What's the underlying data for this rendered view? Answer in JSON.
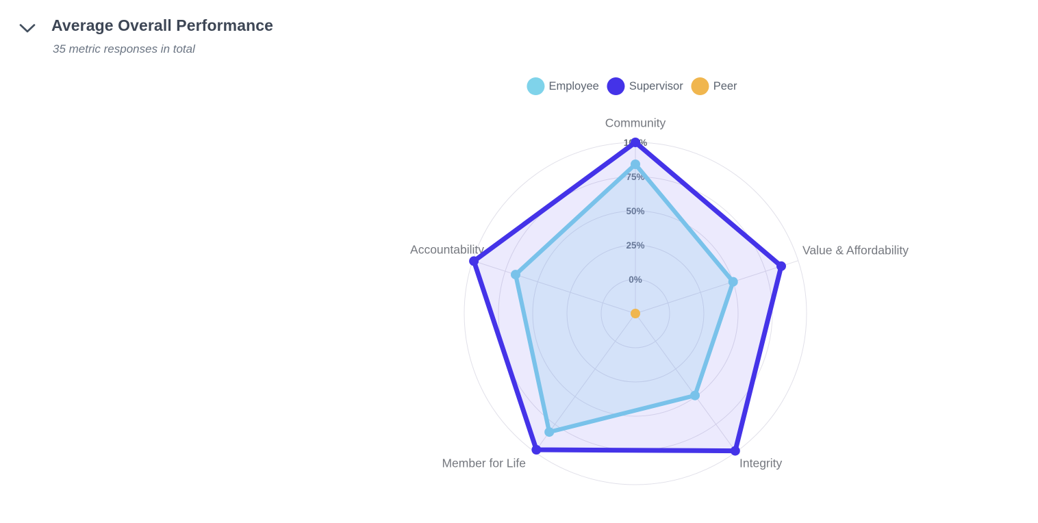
{
  "header": {
    "title": "Average Overall Performance",
    "subtitle": "35 metric responses in total"
  },
  "legend": [
    {
      "label": "Employee",
      "color": "#7FD3EA"
    },
    {
      "label": "Supervisor",
      "color": "#4433E8"
    },
    {
      "label": "Peer",
      "color": "#F0B64E"
    }
  ],
  "chart_data": {
    "type": "radar",
    "title": "Average Overall Performance",
    "indicators": [
      "Community",
      "Value & Affordability",
      "Integrity",
      "Member for Life",
      "Accountability"
    ],
    "ring_labels": [
      "0%",
      "25%",
      "50%",
      "75%",
      "100%"
    ],
    "axis_min": 0,
    "axis_max": 100,
    "grid_shape": "circle",
    "legend_position": "top-center",
    "series": [
      {
        "name": "Employee",
        "color": "#7FD3EA",
        "fill_opacity": 0.2,
        "line_width": 6.2,
        "values": [
          84,
          50,
          49,
          82,
          67
        ]
      },
      {
        "name": "Supervisor",
        "color": "#4433E8",
        "fill_opacity": 0.1,
        "line_width": 7.0,
        "values": [
          100,
          87,
          99,
          98,
          99
        ]
      },
      {
        "name": "Peer",
        "color": "#F0B64E",
        "fill_opacity": 0.2,
        "line_width": 6.2,
        "values": null,
        "note": "single point at chart center"
      }
    ]
  },
  "colors": {
    "grid": "#E1E0E9",
    "ring_label": "#676d78",
    "axis_label": "#75787f",
    "title": "#3d4655",
    "subtitle": "#6b7583",
    "chevron": "#44505f"
  }
}
